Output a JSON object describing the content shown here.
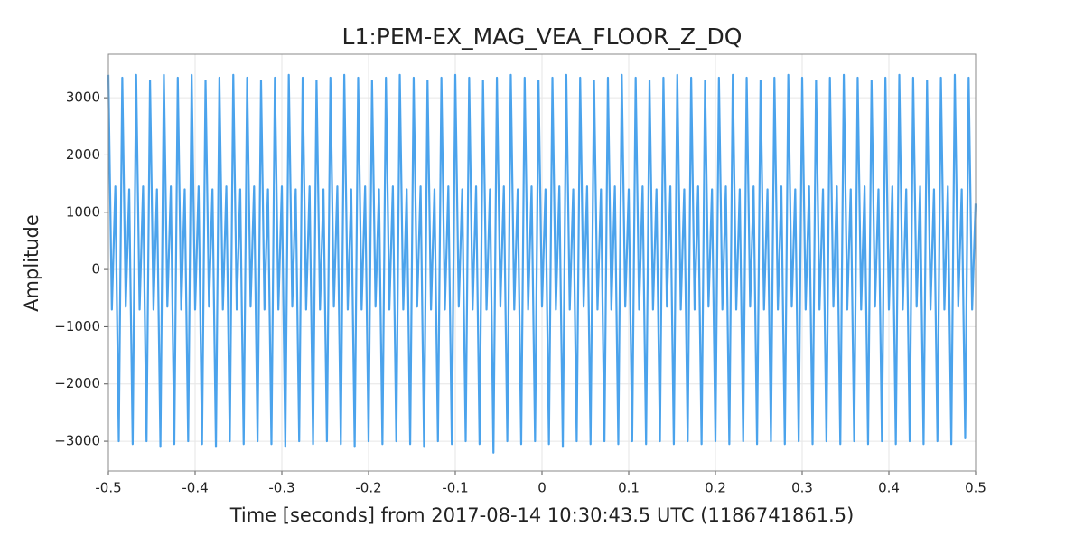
{
  "chart_data": {
    "type": "line",
    "title": "L1:PEM-EX_MAG_VEA_FLOOR_Z_DQ",
    "xlabel": "Time [seconds] from 2017-08-14 10:30:43.5 UTC (1186741861.5)",
    "ylabel": "Amplitude",
    "xlim": [
      -0.5,
      0.5
    ],
    "ylim": [
      -3520,
      3760
    ],
    "xticks": [
      -0.5,
      -0.4,
      -0.3,
      -0.2,
      -0.1,
      0,
      0.1,
      0.2,
      0.3,
      0.4,
      0.5
    ],
    "yticks": [
      {
        "value": -3000,
        "label": "−3000"
      },
      {
        "value": -2000,
        "label": "−2000"
      },
      {
        "value": -1000,
        "label": "−1000"
      },
      0,
      1000,
      2000,
      3000
    ],
    "grid": true,
    "series": [
      {
        "color": "#4ba3ec",
        "x": [
          -0.5,
          -0.496,
          -0.492,
          -0.488,
          -0.484,
          -0.48,
          -0.476,
          -0.472,
          -0.468,
          -0.464,
          -0.46,
          -0.456,
          -0.452,
          -0.448,
          -0.444,
          -0.44,
          -0.436,
          -0.432,
          -0.428,
          -0.424,
          -0.42,
          -0.416,
          -0.412,
          -0.408,
          -0.404,
          -0.4,
          -0.396,
          -0.392,
          -0.388,
          -0.384,
          -0.38,
          -0.376,
          -0.372,
          -0.368,
          -0.364,
          -0.36,
          -0.356,
          -0.352,
          -0.348,
          -0.344,
          -0.34,
          -0.336,
          -0.332,
          -0.328,
          -0.324,
          -0.32,
          -0.316,
          -0.312,
          -0.308,
          -0.304,
          -0.3,
          -0.296,
          -0.292,
          -0.288,
          -0.284,
          -0.28,
          -0.276,
          -0.272,
          -0.268,
          -0.264,
          -0.26,
          -0.256,
          -0.252,
          -0.248,
          -0.244,
          -0.24,
          -0.236,
          -0.232,
          -0.228,
          -0.224,
          -0.22,
          -0.216,
          -0.212,
          -0.208,
          -0.204,
          -0.2,
          -0.196,
          -0.192,
          -0.188,
          -0.184,
          -0.18,
          -0.176,
          -0.172,
          -0.168,
          -0.164,
          -0.16,
          -0.156,
          -0.152,
          -0.148,
          -0.144,
          -0.14,
          -0.136,
          -0.132,
          -0.128,
          -0.124,
          -0.12,
          -0.116,
          -0.112,
          -0.108,
          -0.104,
          -0.1,
          -0.096,
          -0.092,
          -0.088,
          -0.084,
          -0.08,
          -0.076,
          -0.072,
          -0.068,
          -0.064,
          -0.06,
          -0.056,
          -0.052,
          -0.048,
          -0.044,
          -0.04,
          -0.036,
          -0.032,
          -0.028,
          -0.024,
          -0.02,
          -0.016,
          -0.012,
          -0.008,
          -0.004,
          0,
          0.004,
          0.008,
          0.012,
          0.016,
          0.02,
          0.024,
          0.028,
          0.032,
          0.036,
          0.04,
          0.044,
          0.048,
          0.052,
          0.056,
          0.06,
          0.064,
          0.068,
          0.072,
          0.076,
          0.08,
          0.084,
          0.088,
          0.092,
          0.096,
          0.1,
          0.104,
          0.108,
          0.112,
          0.116,
          0.12,
          0.124,
          0.128,
          0.132,
          0.136,
          0.14,
          0.144,
          0.148,
          0.152,
          0.156,
          0.16,
          0.164,
          0.168,
          0.172,
          0.176,
          0.18,
          0.184,
          0.188,
          0.192,
          0.196,
          0.2,
          0.204,
          0.208,
          0.212,
          0.216,
          0.22,
          0.224,
          0.228,
          0.232,
          0.236,
          0.24,
          0.244,
          0.248,
          0.252,
          0.256,
          0.26,
          0.264,
          0.268,
          0.272,
          0.276,
          0.28,
          0.284,
          0.288,
          0.292,
          0.296,
          0.3,
          0.304,
          0.308,
          0.312,
          0.316,
          0.32,
          0.324,
          0.328,
          0.332,
          0.336,
          0.34,
          0.344,
          0.348,
          0.352,
          0.356,
          0.36,
          0.364,
          0.368,
          0.372,
          0.376,
          0.38,
          0.384,
          0.388,
          0.392,
          0.396,
          0.4,
          0.404,
          0.408,
          0.412,
          0.416,
          0.42,
          0.424,
          0.428,
          0.432,
          0.436,
          0.44,
          0.444,
          0.448,
          0.452,
          0.456,
          0.46,
          0.464,
          0.468,
          0.472,
          0.476,
          0.48,
          0.484,
          0.488,
          0.492,
          0.496,
          0.5
        ],
        "values": [
          3400,
          -700,
          1450,
          -3000,
          3350,
          -650,
          1400,
          -3050,
          3400,
          -700,
          1450,
          -3000,
          3300,
          -700,
          1400,
          -3100,
          3400,
          -650,
          1450,
          -3050,
          3350,
          -700,
          1400,
          -3000,
          3400,
          -700,
          1450,
          -3050,
          3300,
          -650,
          1400,
          -3100,
          3350,
          -700,
          1450,
          -3000,
          3400,
          -700,
          1400,
          -3050,
          3350,
          -650,
          1450,
          -3000,
          3300,
          -700,
          1400,
          -3050,
          3350,
          -700,
          1450,
          -3100,
          3400,
          -650,
          1400,
          -3000,
          3350,
          -700,
          1450,
          -3050,
          3300,
          -700,
          1400,
          -3000,
          3350,
          -650,
          1450,
          -3050,
          3400,
          -700,
          1400,
          -3100,
          3350,
          -700,
          1450,
          -3000,
          3300,
          -650,
          1400,
          -3050,
          3350,
          -700,
          1450,
          -3000,
          3400,
          -700,
          1400,
          -3050,
          3350,
          -650,
          1450,
          -3100,
          3300,
          -700,
          1400,
          -3000,
          3350,
          -700,
          1450,
          -3050,
          3400,
          -650,
          1400,
          -3000,
          3350,
          -700,
          1450,
          -3050,
          3300,
          -700,
          1400,
          -3200,
          3350,
          -650,
          1450,
          -3000,
          3400,
          -700,
          1400,
          -3050,
          3350,
          -700,
          1450,
          -3000,
          3300,
          -650,
          1400,
          -3050,
          3350,
          -700,
          1450,
          -3100,
          3400,
          -700,
          1400,
          -3000,
          3350,
          -650,
          1450,
          -3050,
          3300,
          -700,
          1400,
          -3000,
          3350,
          -700,
          1450,
          -3050,
          3400,
          -650,
          1400,
          -3000,
          3350,
          -700,
          1450,
          -3050,
          3300,
          -700,
          1400,
          -3000,
          3350,
          -650,
          1450,
          -3050,
          3400,
          -700,
          1400,
          -3000,
          3350,
          -700,
          1450,
          -3050,
          3300,
          -650,
          1400,
          -3000,
          3350,
          -700,
          1450,
          -3050,
          3400,
          -700,
          1400,
          -3000,
          3350,
          -650,
          1450,
          -3050,
          3300,
          -700,
          1400,
          -3000,
          3350,
          -700,
          1450,
          -3050,
          3400,
          -650,
          1400,
          -3000,
          3350,
          -700,
          1450,
          -3050,
          3300,
          -700,
          1400,
          -3000,
          3350,
          -650,
          1450,
          -3050,
          3400,
          -700,
          1400,
          -3000,
          3350,
          -700,
          1450,
          -3050,
          3300,
          -650,
          1400,
          -3000,
          3350,
          -700,
          1450,
          -3050,
          3400,
          -700,
          1400,
          -3000,
          3350,
          -650,
          1450,
          -3050,
          3300,
          -700,
          1400,
          -3000,
          3350,
          -700,
          1450,
          -3050,
          3400,
          -650,
          1400,
          -2950,
          3350,
          -700,
          1150
        ]
      }
    ]
  }
}
